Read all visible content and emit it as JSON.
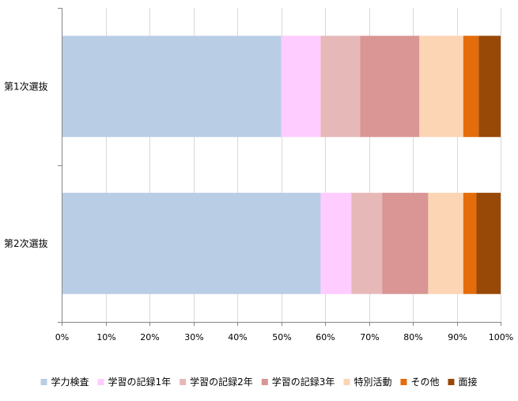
{
  "chart_data": {
    "type": "bar",
    "orientation": "horizontal",
    "stacked": "percent",
    "title": "",
    "xlabel": "",
    "ylabel": "",
    "categories": [
      "第1次選抜",
      "第2次選抜"
    ],
    "x_ticks": [
      "0%",
      "10%",
      "20%",
      "30%",
      "40%",
      "50%",
      "60%",
      "70%",
      "80%",
      "90%",
      "100%"
    ],
    "xlim": [
      0,
      100
    ],
    "grid": "vertical",
    "legend": "bottom",
    "series": [
      {
        "name": "学力検査",
        "color": "#B9CDE5",
        "values": [
          50,
          59
        ]
      },
      {
        "name": "学習の記録1年",
        "color": "#FFCCFF",
        "values": [
          9,
          7
        ]
      },
      {
        "name": "学習の記録2年",
        "color": "#E6B9B8",
        "values": [
          9,
          7
        ]
      },
      {
        "name": "学習の記録3年",
        "color": "#D99694",
        "values": [
          13.5,
          10.5
        ]
      },
      {
        "name": "特別活動",
        "color": "#FCD5B5",
        "values": [
          10,
          8
        ]
      },
      {
        "name": "その他",
        "color": "#E46C0A",
        "values": [
          3.5,
          3
        ]
      },
      {
        "name": "面接",
        "color": "#984807",
        "values": [
          5,
          5.5
        ]
      }
    ]
  }
}
